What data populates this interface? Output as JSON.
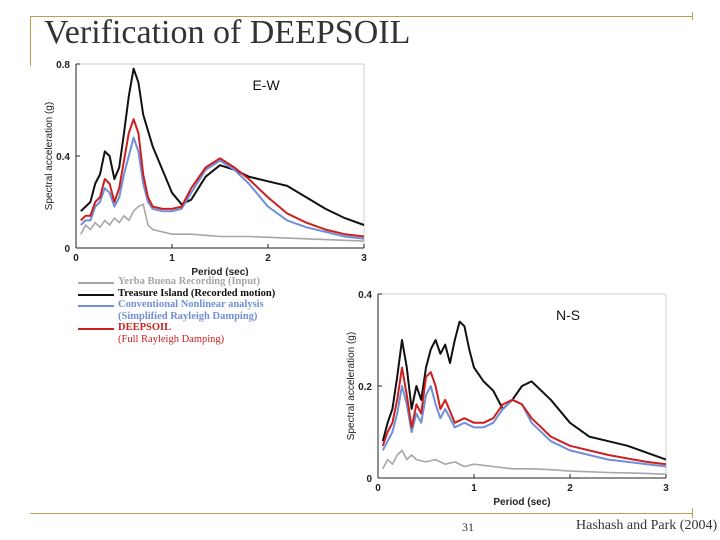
{
  "slide": {
    "title": "Verification of DEEPSOIL",
    "page_number": "31",
    "citation": "Hashash and Park (2004)"
  },
  "colors": {
    "input": "#a6a6a6",
    "recorded": "#111111",
    "conventional": "#6f8fd8",
    "deepsoil": "#cc1f1f",
    "frame": "#b8a24a"
  },
  "legend": {
    "items": [
      {
        "label": "Yerba Buena Recording (Input)",
        "color": "#a6a6a6"
      },
      {
        "label": "Treasure Island (Recorded motion)",
        "color": "#111111"
      },
      {
        "label": "Conventional Nonlinear analysis",
        "color": "#6f8fd8"
      },
      {
        "label": "(Simplified Rayleigh Damping)",
        "color": "#6f8fd8"
      },
      {
        "label": "DEEPSOIL",
        "color": "#cc1f1f"
      },
      {
        "label": "(Full Rayleigh Damping)",
        "color": "#cc1f1f"
      }
    ]
  },
  "chart_data": [
    {
      "type": "line",
      "title": "E-W",
      "xlabel": "Period (sec)",
      "ylabel": "Spectral acceleration (g)",
      "xlim": [
        0,
        3
      ],
      "ylim": [
        0,
        0.8
      ],
      "xticks": [
        "0",
        "1",
        "2",
        "3"
      ],
      "yticks": [
        "0",
        "0.4",
        "0.8"
      ],
      "series": [
        {
          "name": "Yerba Buena Recording (Input)",
          "color": "#a6a6a6",
          "x": [
            0.05,
            0.1,
            0.15,
            0.2,
            0.25,
            0.3,
            0.35,
            0.4,
            0.45,
            0.5,
            0.55,
            0.6,
            0.65,
            0.7,
            0.75,
            0.8,
            0.9,
            1.0,
            1.2,
            1.5,
            1.8,
            2.1,
            2.4,
            2.7,
            3.0
          ],
          "y": [
            0.06,
            0.1,
            0.08,
            0.11,
            0.09,
            0.12,
            0.1,
            0.13,
            0.11,
            0.14,
            0.12,
            0.16,
            0.18,
            0.19,
            0.1,
            0.08,
            0.07,
            0.06,
            0.06,
            0.05,
            0.05,
            0.045,
            0.04,
            0.035,
            0.03
          ]
        },
        {
          "name": "Treasure Island (Recorded motion)",
          "color": "#111111",
          "x": [
            0.05,
            0.1,
            0.15,
            0.2,
            0.25,
            0.3,
            0.35,
            0.4,
            0.45,
            0.5,
            0.55,
            0.6,
            0.65,
            0.7,
            0.8,
            0.9,
            1.0,
            1.1,
            1.2,
            1.35,
            1.5,
            1.65,
            1.8,
            2.0,
            2.2,
            2.4,
            2.6,
            2.8,
            3.0
          ],
          "y": [
            0.16,
            0.18,
            0.2,
            0.28,
            0.32,
            0.42,
            0.4,
            0.3,
            0.35,
            0.5,
            0.66,
            0.78,
            0.72,
            0.58,
            0.44,
            0.34,
            0.24,
            0.19,
            0.21,
            0.31,
            0.36,
            0.34,
            0.31,
            0.29,
            0.27,
            0.22,
            0.17,
            0.13,
            0.1
          ]
        },
        {
          "name": "Conventional Nonlinear analysis (Simplified Rayleigh Damping)",
          "color": "#6f8fd8",
          "x": [
            0.05,
            0.1,
            0.15,
            0.2,
            0.25,
            0.3,
            0.35,
            0.4,
            0.45,
            0.5,
            0.55,
            0.6,
            0.65,
            0.7,
            0.75,
            0.8,
            0.9,
            1.0,
            1.1,
            1.2,
            1.35,
            1.5,
            1.65,
            1.8,
            2.0,
            2.2,
            2.4,
            2.6,
            2.8,
            3.0
          ],
          "y": [
            0.1,
            0.12,
            0.12,
            0.18,
            0.2,
            0.26,
            0.24,
            0.18,
            0.22,
            0.32,
            0.4,
            0.48,
            0.42,
            0.28,
            0.2,
            0.17,
            0.16,
            0.16,
            0.17,
            0.24,
            0.34,
            0.38,
            0.34,
            0.28,
            0.18,
            0.12,
            0.09,
            0.07,
            0.05,
            0.04
          ]
        },
        {
          "name": "DEEPSOIL (Full Rayleigh Damping)",
          "color": "#cc1f1f",
          "x": [
            0.05,
            0.1,
            0.15,
            0.2,
            0.25,
            0.3,
            0.35,
            0.4,
            0.45,
            0.5,
            0.55,
            0.6,
            0.65,
            0.7,
            0.75,
            0.8,
            0.9,
            1.0,
            1.1,
            1.2,
            1.35,
            1.5,
            1.65,
            1.8,
            2.0,
            2.2,
            2.4,
            2.6,
            2.8,
            3.0
          ],
          "y": [
            0.12,
            0.14,
            0.14,
            0.2,
            0.22,
            0.3,
            0.28,
            0.2,
            0.26,
            0.38,
            0.5,
            0.56,
            0.5,
            0.32,
            0.22,
            0.18,
            0.17,
            0.17,
            0.18,
            0.26,
            0.35,
            0.39,
            0.35,
            0.3,
            0.22,
            0.15,
            0.11,
            0.08,
            0.06,
            0.05
          ]
        }
      ]
    },
    {
      "type": "line",
      "title": "N-S",
      "xlabel": "Period (sec)",
      "ylabel": "Spectral acceleration (g)",
      "xlim": [
        0,
        3
      ],
      "ylim": [
        0,
        0.4
      ],
      "xticks": [
        "0",
        "1",
        "2",
        "3"
      ],
      "yticks": [
        "0",
        "0.2",
        "0.4"
      ],
      "series": [
        {
          "name": "Yerba Buena Recording (Input)",
          "color": "#a6a6a6",
          "x": [
            0.05,
            0.1,
            0.15,
            0.2,
            0.25,
            0.3,
            0.35,
            0.4,
            0.5,
            0.6,
            0.7,
            0.8,
            0.9,
            1.0,
            1.2,
            1.4,
            1.6,
            1.8,
            2.0,
            2.4,
            2.8,
            3.0
          ],
          "y": [
            0.02,
            0.04,
            0.03,
            0.05,
            0.06,
            0.04,
            0.05,
            0.04,
            0.035,
            0.04,
            0.03,
            0.035,
            0.025,
            0.03,
            0.025,
            0.02,
            0.02,
            0.018,
            0.015,
            0.012,
            0.01,
            0.008
          ]
        },
        {
          "name": "Treasure Island (Recorded motion)",
          "color": "#111111",
          "x": [
            0.05,
            0.1,
            0.15,
            0.2,
            0.25,
            0.3,
            0.35,
            0.4,
            0.45,
            0.5,
            0.55,
            0.6,
            0.65,
            0.7,
            0.75,
            0.8,
            0.85,
            0.9,
            0.95,
            1.0,
            1.1,
            1.2,
            1.3,
            1.4,
            1.5,
            1.6,
            1.8,
            2.0,
            2.2,
            2.4,
            2.6,
            2.8,
            3.0
          ],
          "y": [
            0.08,
            0.12,
            0.15,
            0.22,
            0.3,
            0.24,
            0.15,
            0.2,
            0.17,
            0.24,
            0.28,
            0.3,
            0.27,
            0.29,
            0.25,
            0.3,
            0.34,
            0.33,
            0.28,
            0.24,
            0.21,
            0.19,
            0.15,
            0.17,
            0.2,
            0.21,
            0.17,
            0.12,
            0.09,
            0.08,
            0.07,
            0.055,
            0.04
          ]
        },
        {
          "name": "Conventional Nonlinear analysis (Simplified Rayleigh Damping)",
          "color": "#6f8fd8",
          "x": [
            0.05,
            0.1,
            0.15,
            0.2,
            0.25,
            0.3,
            0.35,
            0.4,
            0.45,
            0.5,
            0.55,
            0.6,
            0.65,
            0.7,
            0.8,
            0.9,
            1.0,
            1.1,
            1.2,
            1.3,
            1.4,
            1.5,
            1.6,
            1.8,
            2.0,
            2.4,
            2.8,
            3.0
          ],
          "y": [
            0.06,
            0.08,
            0.1,
            0.14,
            0.2,
            0.16,
            0.1,
            0.14,
            0.12,
            0.18,
            0.2,
            0.16,
            0.13,
            0.15,
            0.11,
            0.12,
            0.11,
            0.11,
            0.12,
            0.15,
            0.17,
            0.16,
            0.12,
            0.08,
            0.06,
            0.04,
            0.03,
            0.025
          ]
        },
        {
          "name": "DEEPSOIL (Full Rayleigh Damping)",
          "color": "#cc1f1f",
          "x": [
            0.05,
            0.1,
            0.15,
            0.2,
            0.25,
            0.3,
            0.35,
            0.4,
            0.45,
            0.5,
            0.55,
            0.6,
            0.65,
            0.7,
            0.8,
            0.9,
            1.0,
            1.1,
            1.2,
            1.3,
            1.4,
            1.5,
            1.6,
            1.8,
            2.0,
            2.4,
            2.8,
            3.0
          ],
          "y": [
            0.07,
            0.1,
            0.12,
            0.17,
            0.24,
            0.18,
            0.11,
            0.16,
            0.14,
            0.22,
            0.23,
            0.2,
            0.15,
            0.17,
            0.12,
            0.13,
            0.12,
            0.12,
            0.13,
            0.16,
            0.17,
            0.16,
            0.13,
            0.09,
            0.07,
            0.05,
            0.035,
            0.03
          ]
        }
      ]
    }
  ]
}
